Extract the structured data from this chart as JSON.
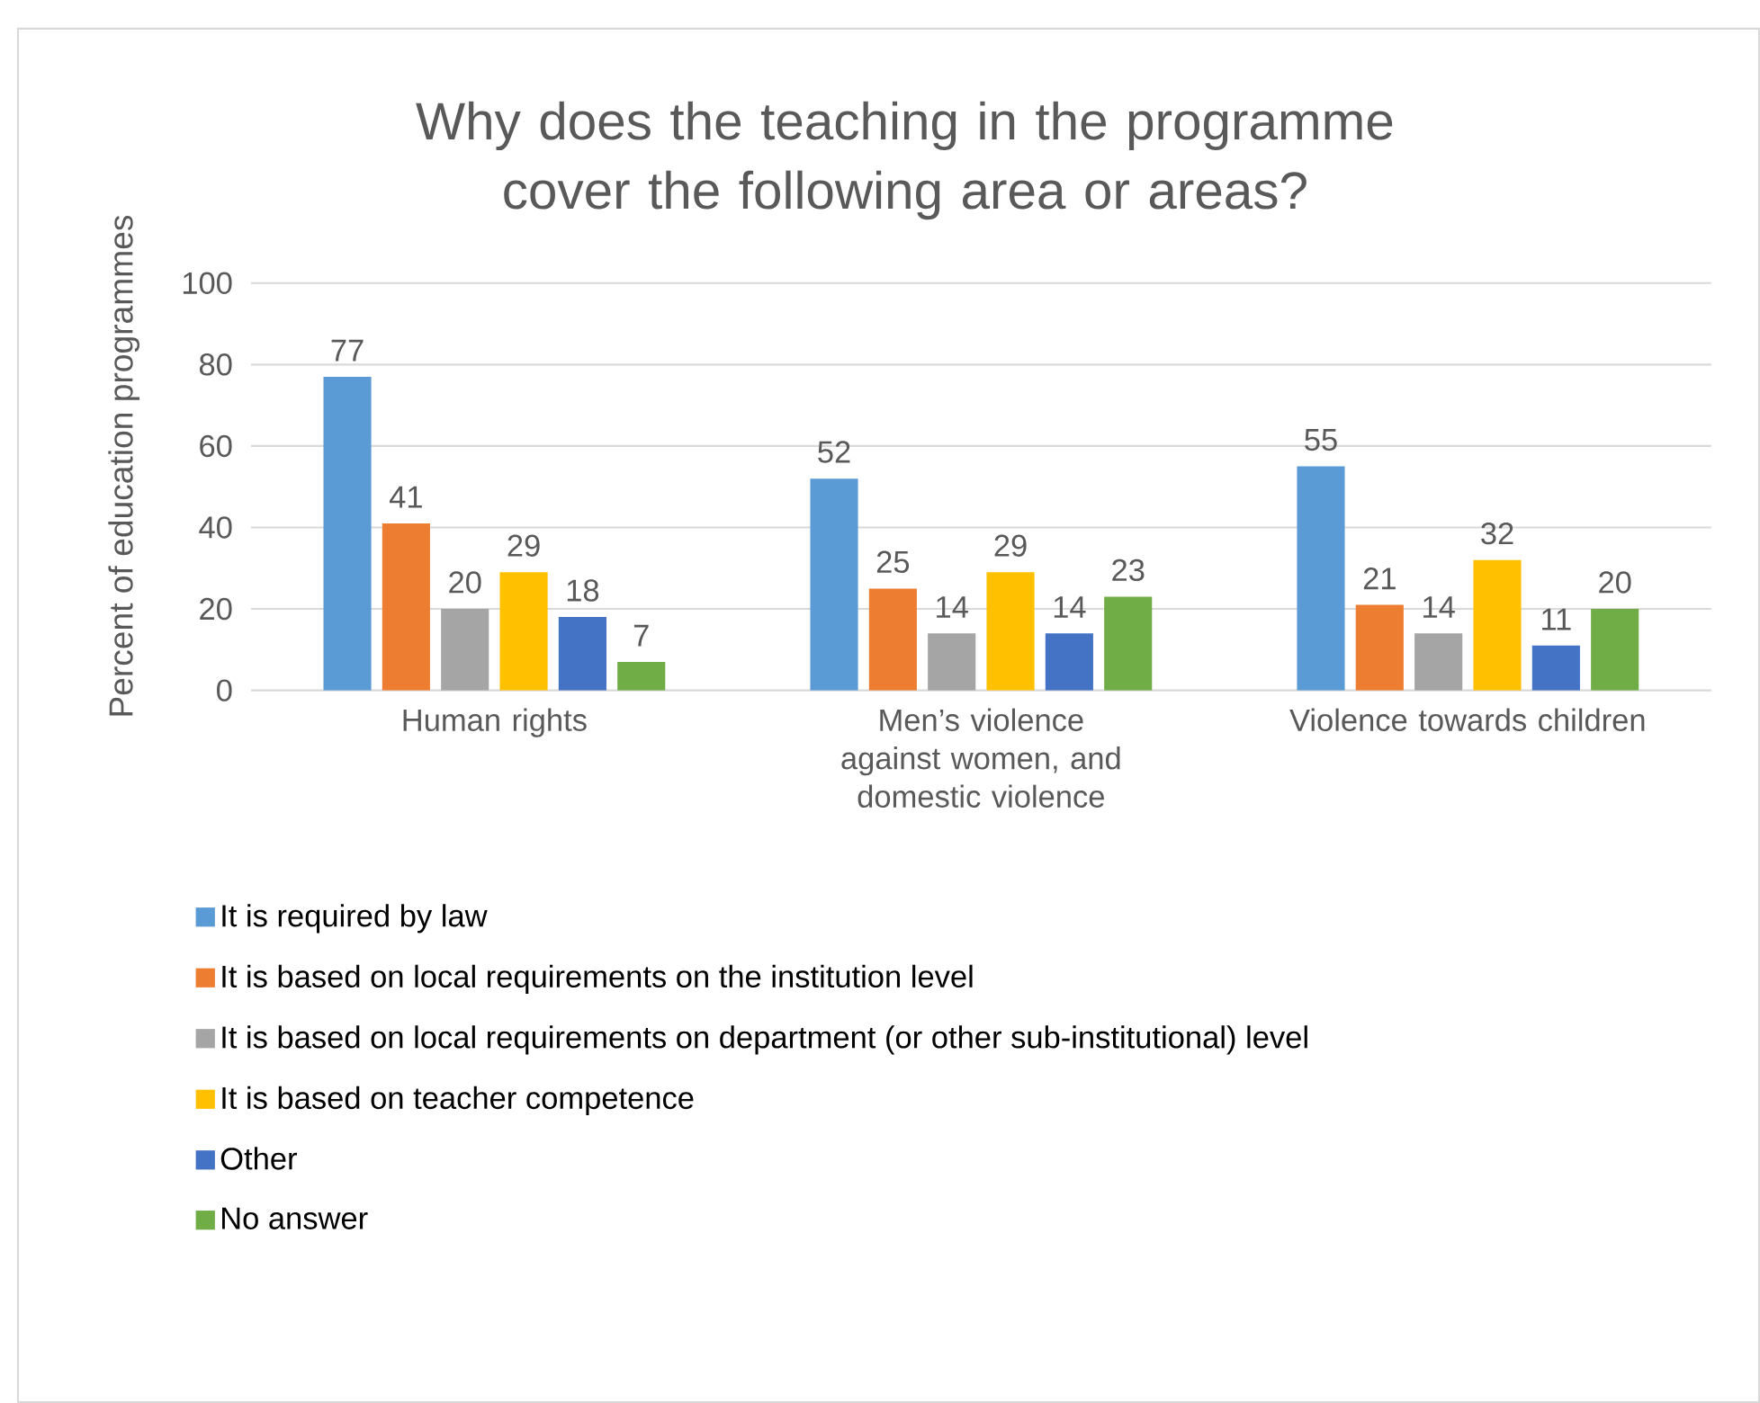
{
  "chart_data": {
    "type": "bar",
    "title": "Why does the teaching in the programme cover the following area or areas?",
    "ylabel": "Percent of education programmes",
    "categories": [
      "Human rights",
      "Men’s violence against women, and domestic violence",
      "Violence towards children"
    ],
    "series": [
      {
        "name": "It is required by law",
        "color": "#5b9bd5",
        "values": [
          77,
          52,
          55
        ]
      },
      {
        "name": "It is based on local requirements on the institution level",
        "color": "#ed7d31",
        "values": [
          41,
          25,
          21
        ]
      },
      {
        "name": "It is based on local requirements on department (or other sub-institutional) level",
        "color": "#a5a5a5",
        "values": [
          20,
          14,
          14
        ]
      },
      {
        "name": "It is based on teacher competence",
        "color": "#ffc000",
        "values": [
          29,
          29,
          32
        ]
      },
      {
        "name": "Other",
        "color": "#4472c4",
        "values": [
          18,
          14,
          11
        ]
      },
      {
        "name": "No answer",
        "color": "#70ad47",
        "values": [
          7,
          23,
          20
        ]
      }
    ],
    "ylim": [
      0,
      100
    ],
    "yticks": [
      0,
      20,
      40,
      60,
      80,
      100
    ],
    "grid": "y",
    "legend": "bottom",
    "data_labels": true
  }
}
